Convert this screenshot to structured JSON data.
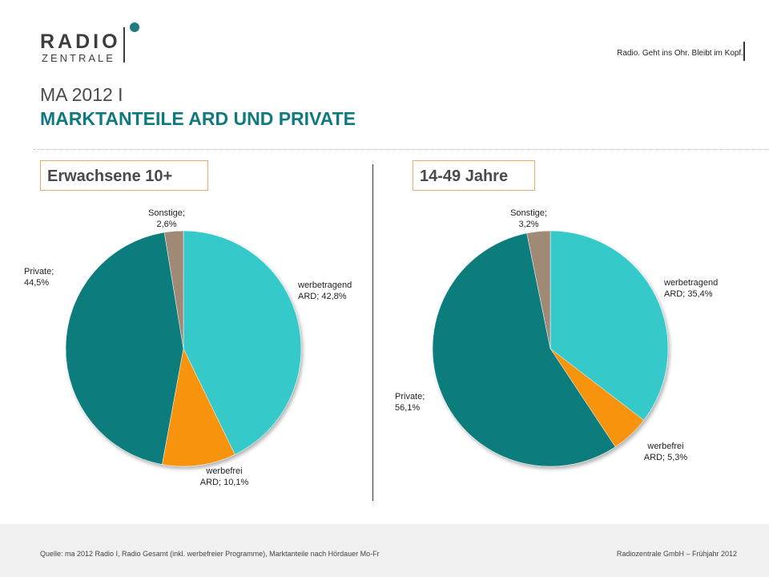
{
  "header": {
    "logo_line1": "RADIO",
    "logo_line2": "ZENTRALE",
    "tagline": "Radio. Geht ins Ohr. Bleibt im Kopf."
  },
  "title": {
    "line1": "MA 2012 I",
    "line2": "MARKTANTEILE ARD UND PRIVATE"
  },
  "chart_data": [
    {
      "type": "pie",
      "title": "Erwachsene 10+",
      "slices": [
        {
          "name": "werbetragend ARD",
          "label_lines": [
            "werbetragend",
            "ARD; 42,8%"
          ],
          "value": 42.8,
          "color": "#36c9c9"
        },
        {
          "name": "werbefrei ARD",
          "label_lines": [
            "werbefrei",
            "ARD; 10,1%"
          ],
          "value": 10.1,
          "color": "#f7930e"
        },
        {
          "name": "Private",
          "label_lines": [
            "Private;",
            "44,5%"
          ],
          "value": 44.5,
          "color": "#0b7b7d"
        },
        {
          "name": "Sonstige",
          "label_lines": [
            "Sonstige;",
            "2,6%"
          ],
          "value": 2.6,
          "color": "#a08974"
        }
      ]
    },
    {
      "type": "pie",
      "title": "14-49 Jahre",
      "slices": [
        {
          "name": "werbetragend ARD",
          "label_lines": [
            "werbetragend",
            "ARD; 35,4%"
          ],
          "value": 35.4,
          "color": "#36c9c9"
        },
        {
          "name": "werbefrei ARD",
          "label_lines": [
            "werbefrei",
            "ARD; 5,3%"
          ],
          "value": 5.3,
          "color": "#f7930e"
        },
        {
          "name": "Private",
          "label_lines": [
            "Private;",
            "56,1%"
          ],
          "value": 56.1,
          "color": "#0b7b7d"
        },
        {
          "name": "Sonstige",
          "label_lines": [
            "Sonstige;",
            "3,2%"
          ],
          "value": 3.2,
          "color": "#a08974"
        }
      ]
    }
  ],
  "footer": {
    "source": "Quelle: ma 2012 Radio I, Radio Gesamt (inkl. werbefreier Programme), Marktanteile nach Hördauer Mo-Fr",
    "company": "Radiozentrale GmbH – Frühjahr 2012"
  }
}
